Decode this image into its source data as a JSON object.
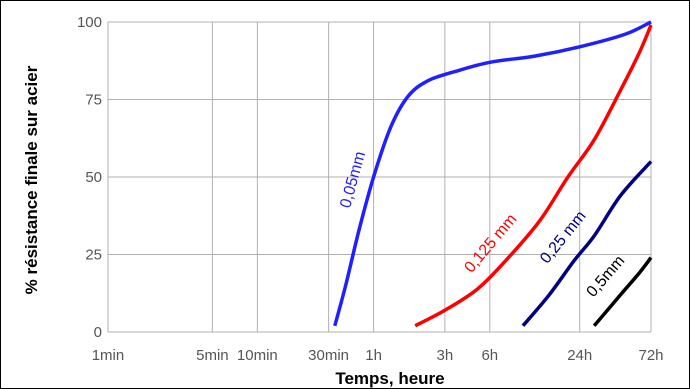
{
  "chart_data": {
    "type": "line",
    "title": "",
    "xlabel": "Temps, heure",
    "ylabel": "% résistance finale sur acier",
    "x_scale": "log",
    "x_unit": "hours",
    "xlim": [
      0.01667,
      72
    ],
    "ylim": [
      0,
      100
    ],
    "grid": true,
    "x_ticks": [
      {
        "value": 0.016667,
        "label": "1min"
      },
      {
        "value": 0.083333,
        "label": "5min"
      },
      {
        "value": 0.166667,
        "label": "10min"
      },
      {
        "value": 0.5,
        "label": "30min"
      },
      {
        "value": 1,
        "label": "1h"
      },
      {
        "value": 3,
        "label": "3h"
      },
      {
        "value": 6,
        "label": "6h"
      },
      {
        "value": 24,
        "label": "24h"
      },
      {
        "value": 72,
        "label": "72h"
      }
    ],
    "y_ticks": [
      {
        "value": 0,
        "label": "0"
      },
      {
        "value": 25,
        "label": "25"
      },
      {
        "value": 50,
        "label": "50"
      },
      {
        "value": 75,
        "label": "75"
      },
      {
        "value": 100,
        "label": "100"
      }
    ],
    "series": [
      {
        "name": "0,05mm",
        "color": "#1f1fff",
        "points": [
          [
            0.55,
            2
          ],
          [
            0.65,
            15
          ],
          [
            0.8,
            33
          ],
          [
            1,
            50
          ],
          [
            1.3,
            66
          ],
          [
            1.7,
            76
          ],
          [
            2.3,
            81
          ],
          [
            3.5,
            84
          ],
          [
            6,
            87
          ],
          [
            12,
            89
          ],
          [
            24,
            92
          ],
          [
            48,
            96
          ],
          [
            72,
            100
          ]
        ]
      },
      {
        "name": "0,125 mm",
        "color": "#ff0000",
        "points": [
          [
            1.9,
            2
          ],
          [
            3,
            7
          ],
          [
            5,
            14
          ],
          [
            8,
            24
          ],
          [
            13,
            36
          ],
          [
            20,
            50
          ],
          [
            30,
            62
          ],
          [
            45,
            78
          ],
          [
            60,
            90
          ],
          [
            72,
            99
          ]
        ]
      },
      {
        "name": "0,25 mm",
        "color": "#000080",
        "points": [
          [
            10,
            2
          ],
          [
            15,
            12
          ],
          [
            22,
            23
          ],
          [
            30,
            31
          ],
          [
            45,
            44
          ],
          [
            72,
            55
          ]
        ]
      },
      {
        "name": "0,5mm",
        "color": "#000000",
        "points": [
          [
            30,
            2
          ],
          [
            45,
            12
          ],
          [
            60,
            19
          ],
          [
            72,
            24
          ]
        ]
      }
    ]
  }
}
